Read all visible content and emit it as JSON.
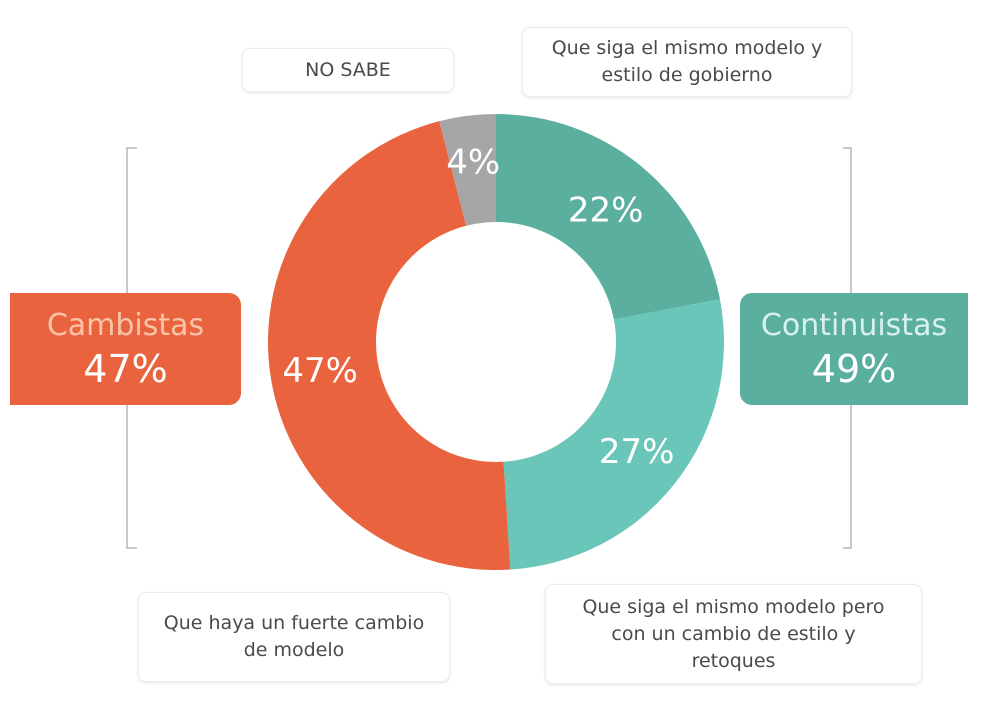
{
  "chart_data": {
    "type": "donut",
    "slices": [
      {
        "label": "Que siga el mismo modelo y estilo de gobierno",
        "value": 22,
        "display": "22%",
        "color": "#5aaf9f"
      },
      {
        "label": "Que siga el mismo modelo pero con un cambio de estilo y retoques",
        "value": 27,
        "display": "27%",
        "color": "#6ac6b9"
      },
      {
        "label": "Que haya un fuerte cambio de modelo",
        "value": 47,
        "display": "47%",
        "color": "#e9633f"
      },
      {
        "label": "NO SABE",
        "value": 4,
        "display": "4%",
        "color": "#a6a6a9"
      }
    ],
    "groups": [
      {
        "label": "Cambistas",
        "value": "47%",
        "color": "#e9633f"
      },
      {
        "label": "Continuistas",
        "value": "49%",
        "color": "#5aaf9f"
      }
    ]
  },
  "callouts": {
    "nosabe": [
      "NO SABE"
    ],
    "mismo_modelo": [
      "Que siga el mismo modelo y",
      "estilo de gobierno"
    ],
    "fuerte_cambio": [
      "Que haya un fuerte cambio",
      "de modelo"
    ],
    "retoques": [
      "Que siga el mismo modelo pero",
      "con un cambio de estilo y",
      "retoques"
    ]
  },
  "colors": {
    "bracket": "#b5b5b5",
    "label_text": "#ffffff"
  }
}
